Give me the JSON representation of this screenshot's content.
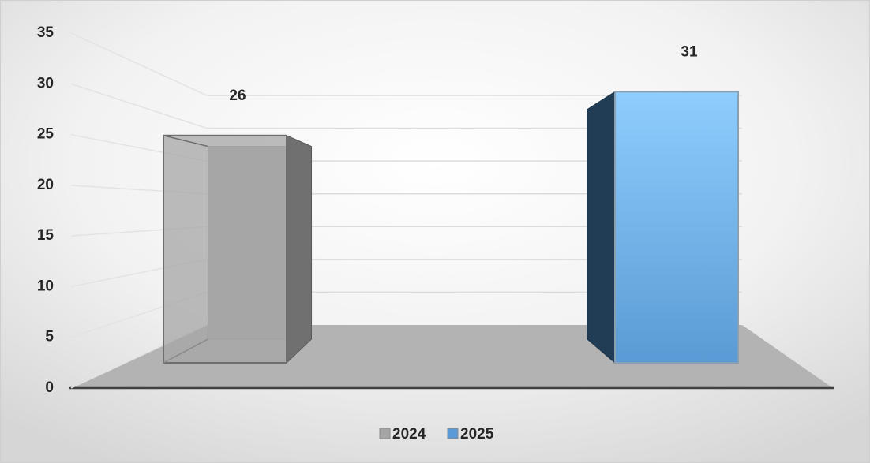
{
  "chart_data": {
    "type": "bar3d",
    "series": [
      {
        "name": "2024",
        "color": "#a6a6a6",
        "values": [
          26
        ]
      },
      {
        "name": "2025",
        "color": "#5b9bd5",
        "values": [
          31
        ]
      }
    ],
    "ylim": [
      0,
      35
    ],
    "yticks": [
      0,
      5,
      10,
      15,
      20,
      25,
      30,
      35
    ],
    "grid": true,
    "legend": "bottom"
  }
}
